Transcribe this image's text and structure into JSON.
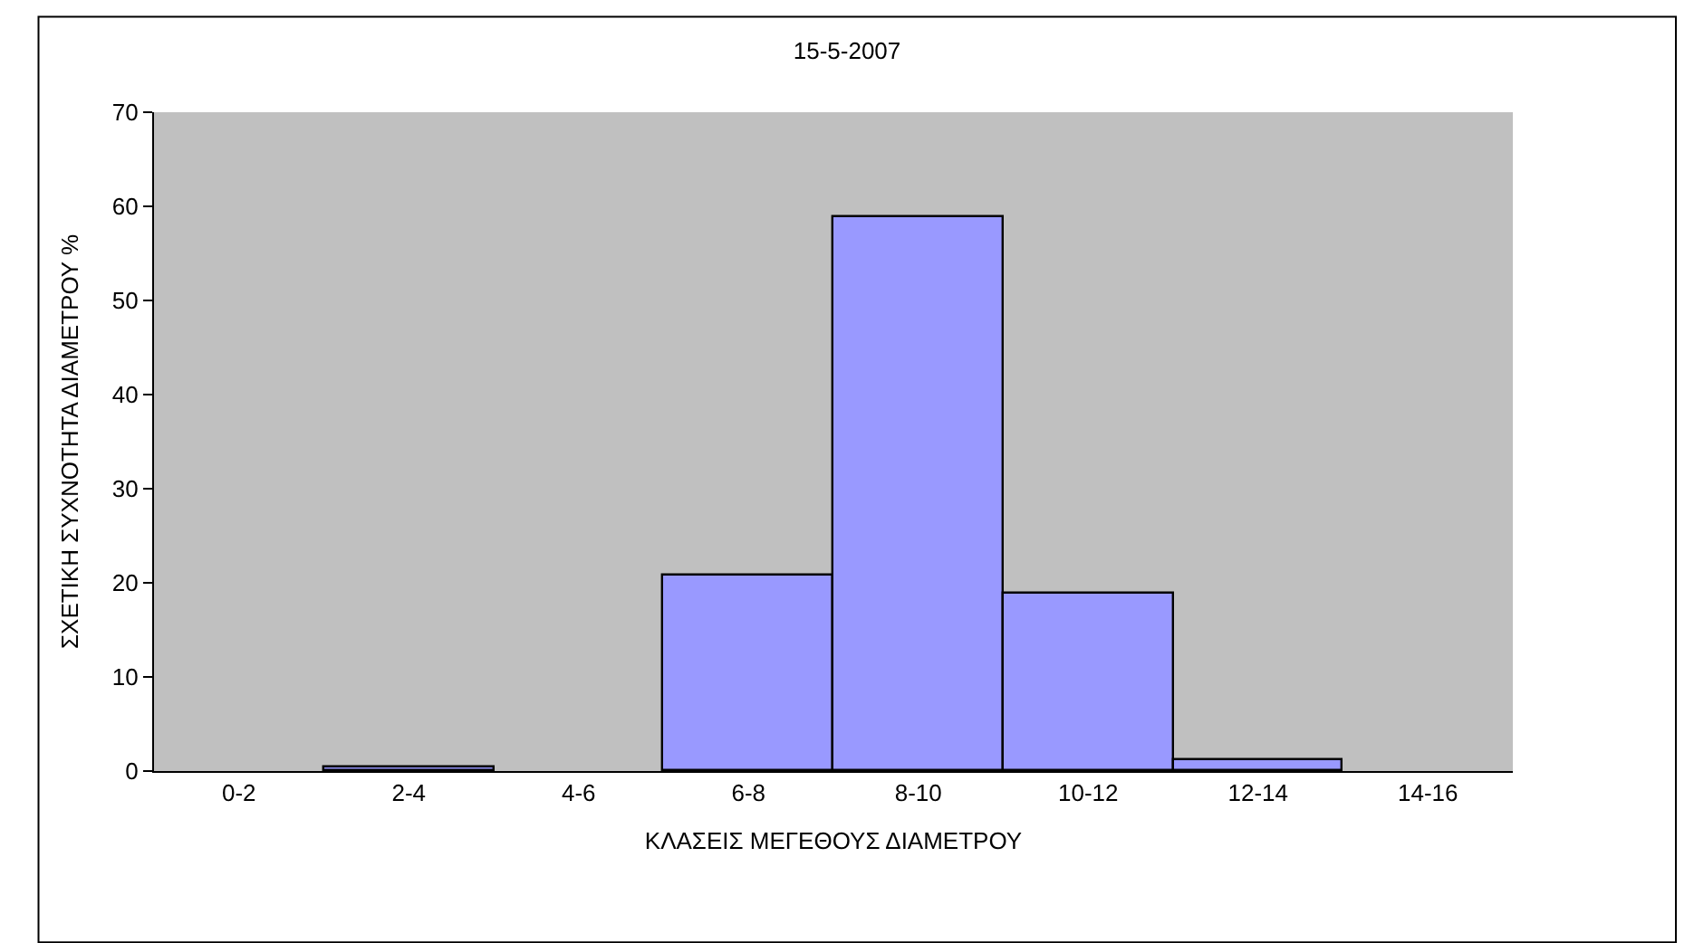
{
  "chart_data": {
    "type": "bar",
    "title": "15-5-2007",
    "xlabel": "ΚΛΑΣΕΙΣ ΜΕΓΕΘΟΥΣ ΔΙΑΜΕΤΡΟΥ",
    "ylabel": "ΣΧΕΤΙΚΗ ΣΥΧΝΟΤΗΤΑ ΔΙΑΜΕΤΡΟΥ %",
    "categories": [
      "0-2",
      "2-4",
      "4-6",
      "6-8",
      "8-10",
      "10-12",
      "12-14",
      "14-16"
    ],
    "values": [
      0,
      0.4,
      0,
      20.8,
      58.8,
      18.8,
      1.2,
      0
    ],
    "color": "#9999ff",
    "ylim": [
      0,
      70
    ],
    "yticks": [
      0,
      10,
      20,
      30,
      40,
      50,
      60,
      70
    ],
    "grid": false
  }
}
